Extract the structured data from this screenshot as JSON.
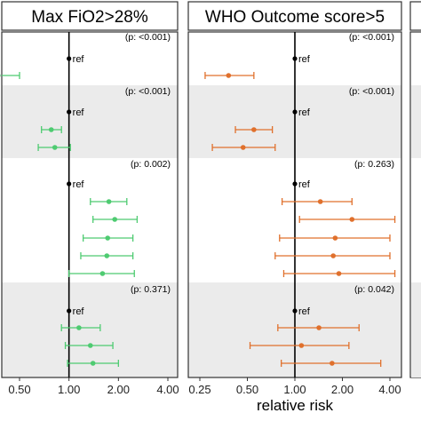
{
  "chart_data": {
    "type": "forest",
    "xlabel": "relative risk",
    "x_scale": "log",
    "xlim": [
      0.25,
      4.0
    ],
    "tick_values": [
      0.25,
      0.5,
      1.0,
      2.0,
      4.0
    ],
    "tick_labels": [
      "0.25",
      "0.50",
      "1.00",
      "2.00",
      "4.00"
    ],
    "reference_line": 1.0,
    "group_shading": [
      "none",
      "gray",
      "none",
      "gray"
    ],
    "panels": [
      {
        "title": "Max FiO2>28%",
        "color": "#4ecb71",
        "groups": [
          {
            "p": "(p: <0.001)",
            "rows": [
              {
                "ref": true,
                "label": "ref"
              },
              {
                "est": 0.37,
                "lo": 0.28,
                "hi": 0.5
              }
            ]
          },
          {
            "p": "(p: <0.001)",
            "rows": [
              {
                "ref": true,
                "label": "ref"
              },
              {
                "est": 0.78,
                "lo": 0.68,
                "hi": 0.9
              },
              {
                "est": 0.82,
                "lo": 0.65,
                "hi": 1.02
              }
            ]
          },
          {
            "p": "(p: 0.002)",
            "rows": [
              {
                "ref": true,
                "label": "ref"
              },
              {
                "est": 1.75,
                "lo": 1.35,
                "hi": 2.25
              },
              {
                "est": 1.9,
                "lo": 1.4,
                "hi": 2.6
              },
              {
                "est": 1.72,
                "lo": 1.22,
                "hi": 2.45
              },
              {
                "est": 1.7,
                "lo": 1.18,
                "hi": 2.45
              },
              {
                "est": 1.6,
                "lo": 1.0,
                "hi": 2.5
              }
            ]
          },
          {
            "p": "(p: 0.371)",
            "rows": [
              {
                "ref": true,
                "label": "ref"
              },
              {
                "est": 1.15,
                "lo": 0.9,
                "hi": 1.55
              },
              {
                "est": 1.35,
                "lo": 0.95,
                "hi": 1.85
              },
              {
                "est": 1.4,
                "lo": 0.98,
                "hi": 2.0
              }
            ]
          }
        ]
      },
      {
        "title": "WHO Outcome score>5",
        "color": "#e0702c",
        "groups": [
          {
            "p": "(p: <0.001)",
            "rows": [
              {
                "ref": true,
                "label": "ref"
              },
              {
                "est": 0.38,
                "lo": 0.27,
                "hi": 0.55
              }
            ]
          },
          {
            "p": "(p: <0.001)",
            "rows": [
              {
                "ref": true,
                "label": "ref"
              },
              {
                "est": 0.55,
                "lo": 0.42,
                "hi": 0.72
              },
              {
                "est": 0.47,
                "lo": 0.3,
                "hi": 0.75
              }
            ]
          },
          {
            "p": "(p: 0.263)",
            "rows": [
              {
                "ref": true,
                "label": "ref"
              },
              {
                "est": 1.45,
                "lo": 0.83,
                "hi": 2.3
              },
              {
                "est": 2.3,
                "lo": 1.07,
                "hi": 4.3
              },
              {
                "est": 1.8,
                "lo": 0.8,
                "hi": 4.0
              },
              {
                "est": 1.75,
                "lo": 0.75,
                "hi": 4.0
              },
              {
                "est": 1.9,
                "lo": 0.85,
                "hi": 4.3
              }
            ]
          },
          {
            "p": "(p: 0.042)",
            "rows": [
              {
                "ref": true,
                "label": "ref"
              },
              {
                "est": 1.42,
                "lo": 0.78,
                "hi": 2.55
              },
              {
                "est": 1.1,
                "lo": 0.52,
                "hi": 2.2
              },
              {
                "est": 1.72,
                "lo": 0.82,
                "hi": 3.5
              }
            ]
          }
        ]
      }
    ]
  }
}
